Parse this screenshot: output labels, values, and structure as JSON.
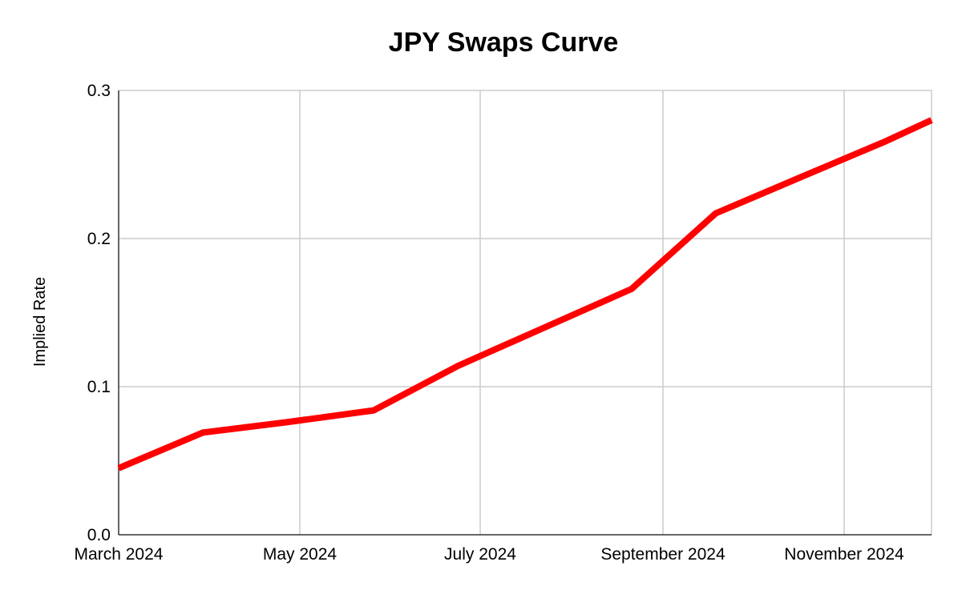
{
  "chart_data": {
    "type": "line",
    "title": "JPY Swaps Curve",
    "xlabel": "",
    "ylabel": "Implied Rate",
    "x_ticks": [
      "March 2024",
      "May 2024",
      "July 2024",
      "September 2024",
      "November 2024"
    ],
    "y_ticks": [
      "0.0",
      "0.1",
      "0.2",
      "0.3"
    ],
    "ylim": [
      0,
      0.3
    ],
    "xlim": [
      "2024-03-01",
      "2024-12-16"
    ],
    "grid": true,
    "legend": "none",
    "series": [
      {
        "color": "#ff0000",
        "x": [
          "2024-03-01",
          "2024-03-31",
          "2024-04-30",
          "2024-05-31",
          "2024-06-30",
          "2024-07-31",
          "2024-08-31",
          "2024-09-30",
          "2024-10-31",
          "2024-11-30",
          "2024-12-16"
        ],
        "y": [
          0.045,
          0.069,
          0.076,
          0.084,
          0.114,
          0.14,
          0.166,
          0.217,
          0.242,
          0.266,
          0.28
        ]
      }
    ]
  }
}
